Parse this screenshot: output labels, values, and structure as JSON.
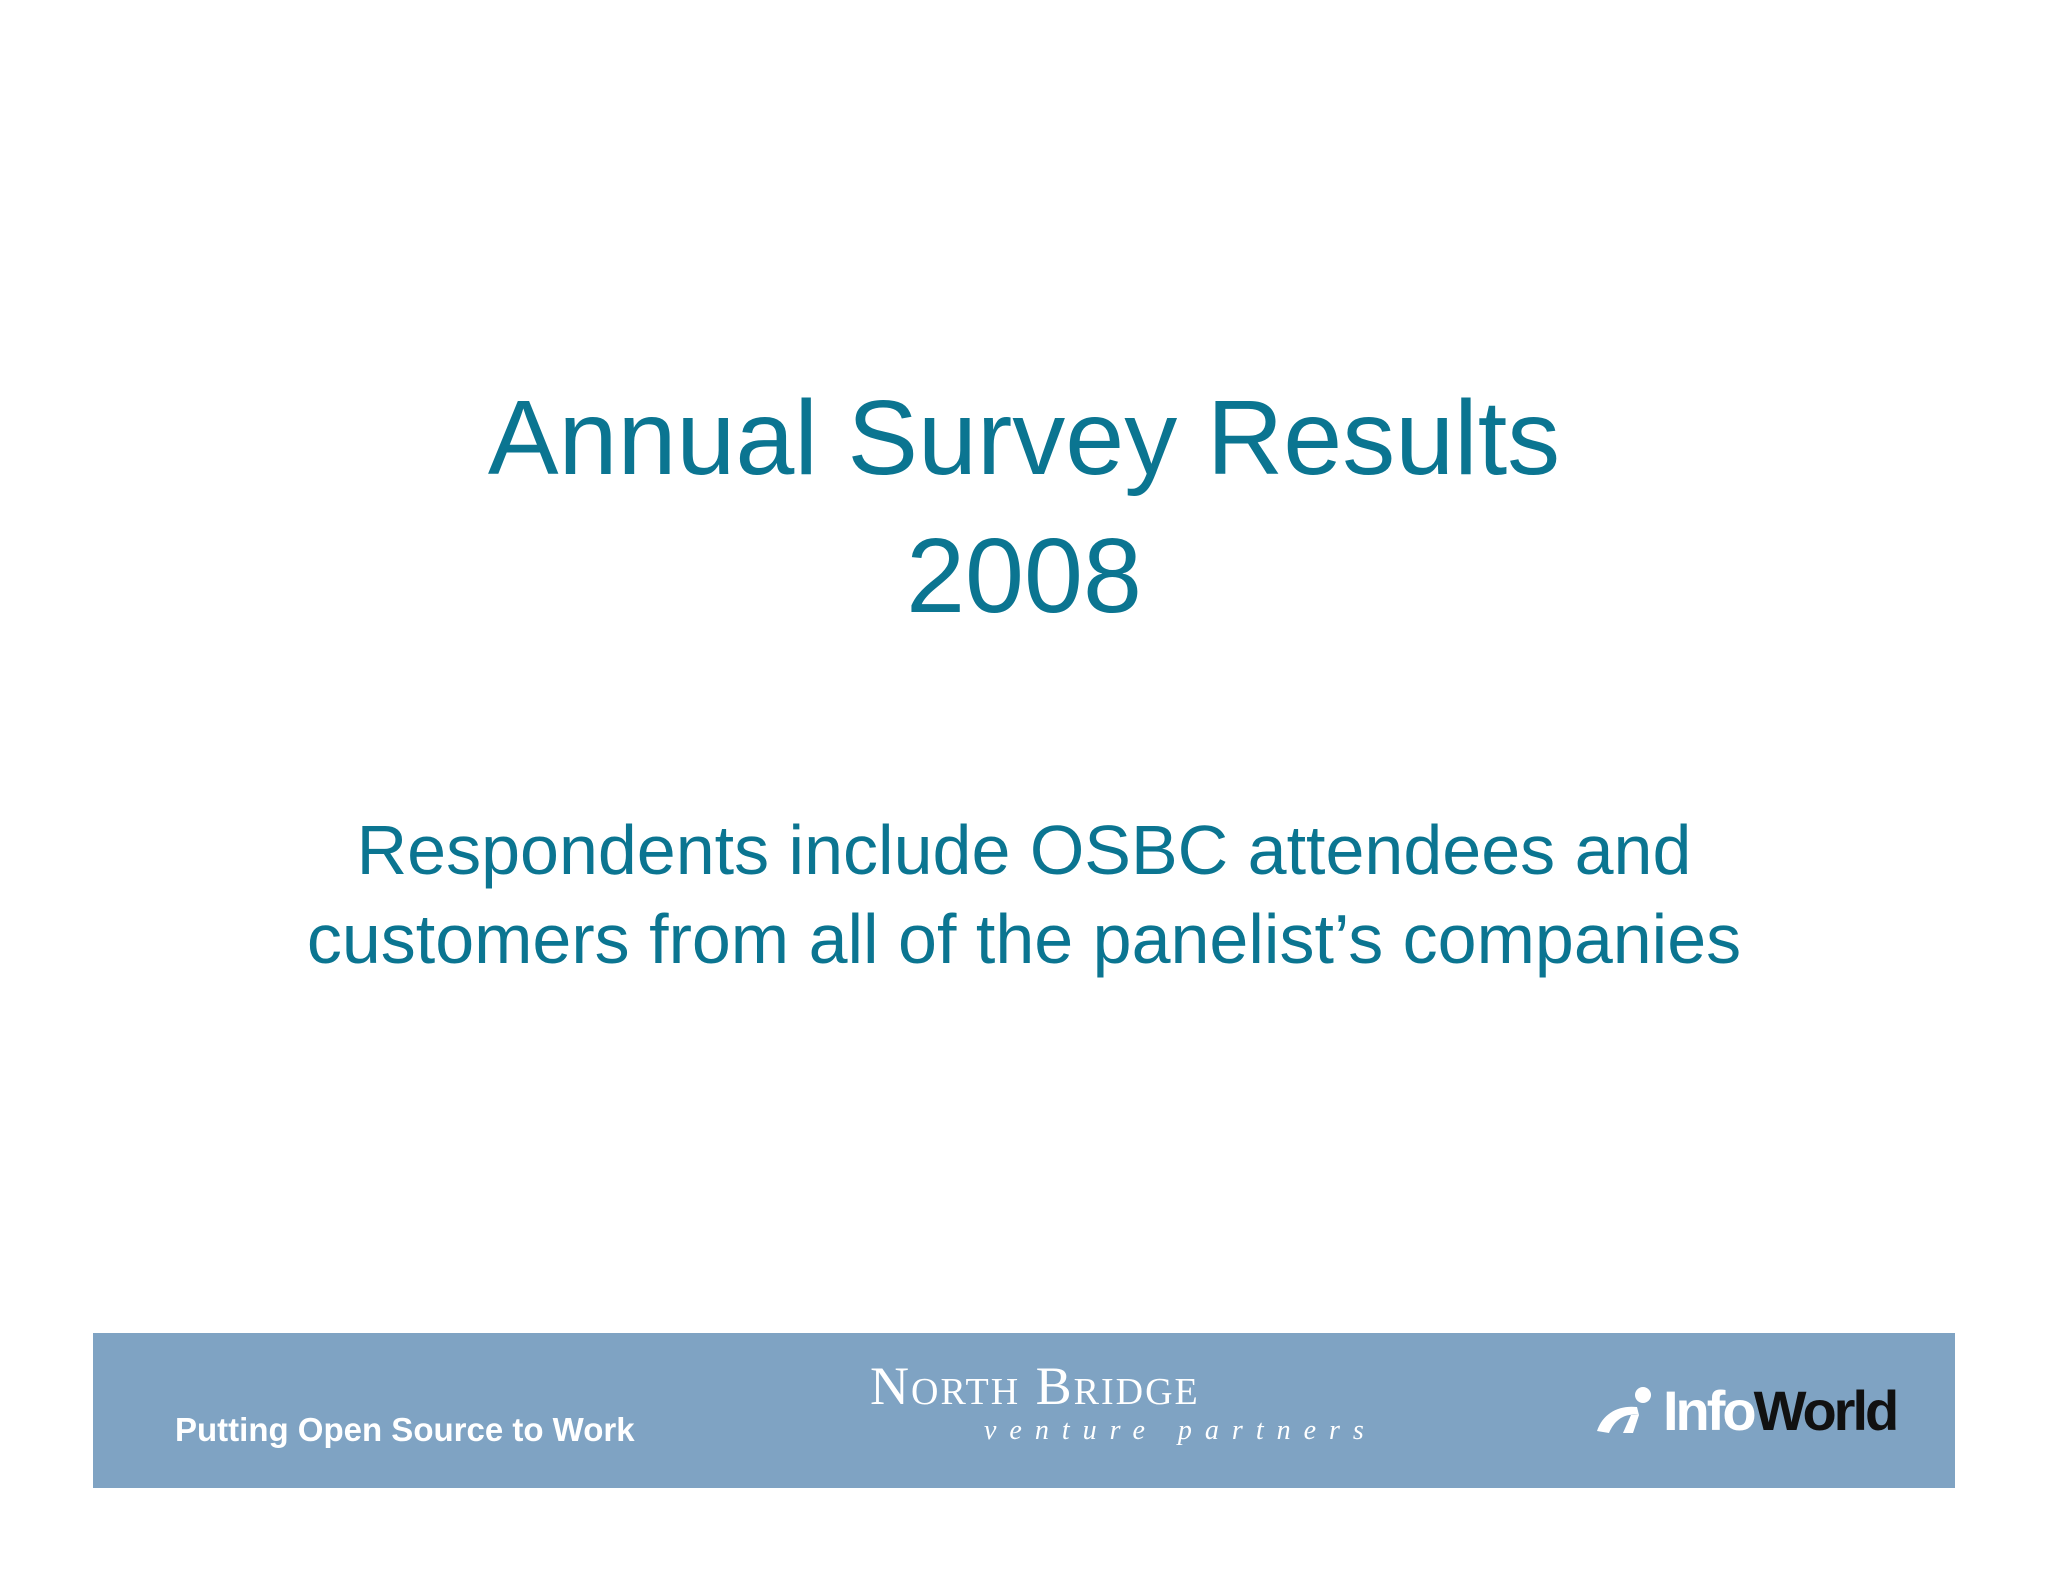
{
  "slide": {
    "title_line1": "Annual Survey Results",
    "title_line2": "2008",
    "subtitle_line1": "Respondents include OSBC attendees and",
    "subtitle_line2": "customers from all of the panelist’s companies"
  },
  "footer": {
    "tagline": "Putting Open Source to Work",
    "sponsor1": {
      "name": "North Bridge",
      "subtitle": "venture partners"
    },
    "sponsor2": {
      "name_part1": "Info",
      "name_part2": "World"
    },
    "bar_color": "#7fa3c3"
  },
  "colors": {
    "title": "#0b7591",
    "background": "#ffffff"
  }
}
